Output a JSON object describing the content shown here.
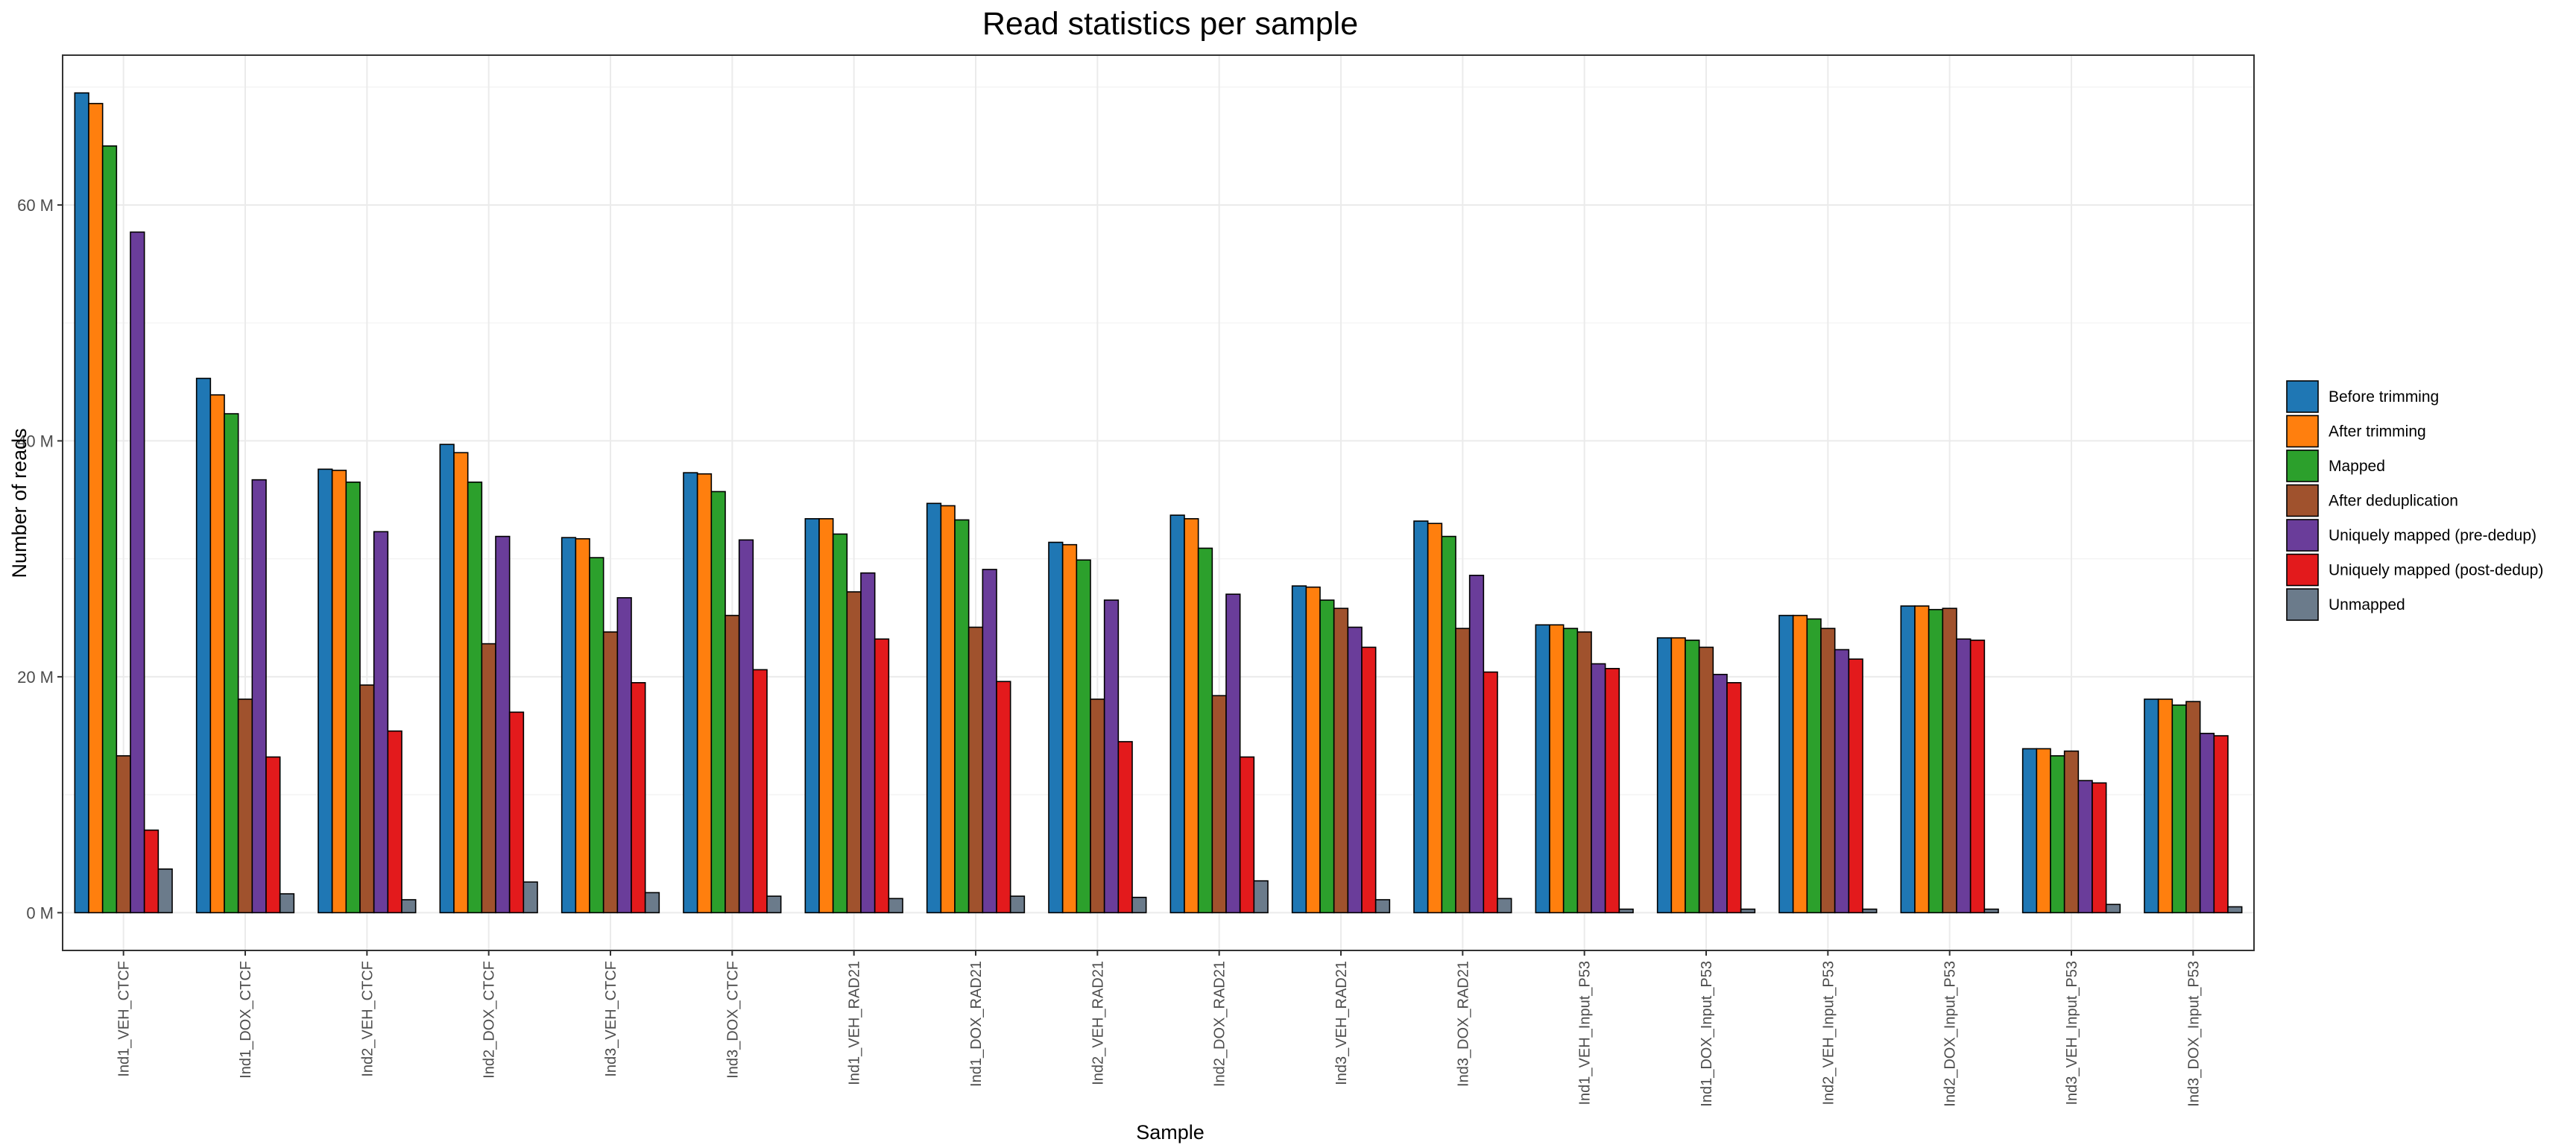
{
  "chart_data": {
    "type": "bar",
    "title": "Read statistics per sample",
    "xlabel": "Sample",
    "ylabel": "Number of reads",
    "ylim": [
      -3.2,
      72.7
    ],
    "y_unit_suffix": " M",
    "y_ticks": [
      0,
      20,
      40,
      60
    ],
    "y_tick_labels": [
      "0 M",
      "20 M",
      "40 M",
      "60 M"
    ],
    "grid": true,
    "legend_position": "right",
    "categories": [
      "Ind1_VEH_CTCF",
      "Ind1_DOX_CTCF",
      "Ind2_VEH_CTCF",
      "Ind2_DOX_CTCF",
      "Ind3_VEH_CTCF",
      "Ind3_DOX_CTCF",
      "Ind1_VEH_RAD21",
      "Ind1_DOX_RAD21",
      "Ind2_VEH_RAD21",
      "Ind2_DOX_RAD21",
      "Ind3_VEH_RAD21",
      "Ind3_DOX_RAD21",
      "Ind1_VEH_Input_P53",
      "Ind1_DOX_Input_P53",
      "Ind2_VEH_Input_P53",
      "Ind2_DOX_Input_P53",
      "Ind3_VEH_Input_P53",
      "Ind3_DOX_Input_P53"
    ],
    "series": [
      {
        "name": "Before trimming",
        "color": "#1f77b4",
        "values": [
          69.5,
          45.3,
          37.6,
          39.7,
          31.8,
          37.3,
          33.4,
          34.7,
          31.4,
          33.7,
          27.7,
          33.2,
          24.4,
          23.3,
          25.2,
          26.0,
          13.9,
          18.1
        ]
      },
      {
        "name": "After trimming",
        "color": "#ff7f0e",
        "values": [
          68.6,
          43.9,
          37.5,
          39.0,
          31.7,
          37.2,
          33.4,
          34.5,
          31.2,
          33.4,
          27.6,
          33.0,
          24.4,
          23.3,
          25.2,
          26.0,
          13.9,
          18.1
        ]
      },
      {
        "name": "Mapped",
        "color": "#2ca02c",
        "values": [
          65.0,
          42.3,
          36.5,
          36.5,
          30.1,
          35.7,
          32.1,
          33.3,
          29.9,
          30.9,
          26.5,
          31.9,
          24.1,
          23.1,
          24.9,
          25.7,
          13.3,
          17.6
        ]
      },
      {
        "name": "After deduplication",
        "color": "#a0522d",
        "values": [
          13.3,
          18.1,
          19.3,
          22.8,
          23.8,
          25.2,
          27.2,
          24.2,
          18.1,
          18.4,
          25.8,
          24.1,
          23.8,
          22.5,
          24.1,
          25.8,
          13.7,
          17.9
        ]
      },
      {
        "name": "Uniquely mapped (pre-dedup)",
        "color": "#6a3d9a",
        "values": [
          57.7,
          36.7,
          32.3,
          31.9,
          26.7,
          31.6,
          28.8,
          29.1,
          26.5,
          27.0,
          24.2,
          28.6,
          21.1,
          20.2,
          22.3,
          23.2,
          11.2,
          15.2
        ]
      },
      {
        "name": "Uniquely mapped (post-dedup)",
        "color": "#e31a1c",
        "values": [
          7.0,
          13.2,
          15.4,
          17.0,
          19.5,
          20.6,
          23.2,
          19.6,
          14.5,
          13.2,
          22.5,
          20.4,
          20.7,
          19.5,
          21.5,
          23.1,
          11.0,
          15.0
        ]
      },
      {
        "name": "Unmapped",
        "color": "#6b7b8b",
        "values": [
          3.7,
          1.6,
          1.1,
          2.6,
          1.7,
          1.4,
          1.2,
          1.4,
          1.3,
          2.7,
          1.1,
          1.2,
          0.3,
          0.3,
          0.3,
          0.3,
          0.7,
          0.5
        ]
      }
    ]
  }
}
